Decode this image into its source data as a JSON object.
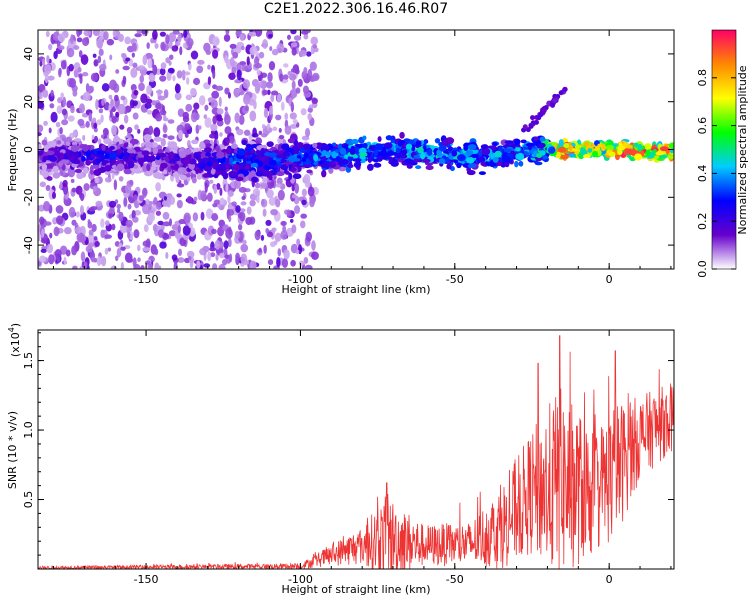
{
  "chart_data": [
    {
      "type": "heatmap",
      "title": "C2E1.2022.306.16.46.R07",
      "xlabel": "Height of straight line (km)",
      "ylabel": "Frequency (Hz)",
      "xlim": [
        -185,
        21
      ],
      "ylim": [
        -50,
        50
      ],
      "xticks": [
        -150,
        -100,
        -50,
        0
      ],
      "yticks": [
        -40,
        -20,
        0,
        20,
        40
      ],
      "grid": false,
      "colorbar": {
        "label": "Normalized spectral amplitude",
        "range": [
          0,
          1
        ],
        "ticks": [
          "0.0",
          "0.2",
          "0.4",
          "0.6",
          "0.8"
        ],
        "colormap": "rainbow",
        "colors": [
          "#ffffff",
          "#6600cc",
          "#0000ff",
          "#00ccff",
          "#00ff00",
          "#ffff00",
          "#ff8800",
          "#ff0066"
        ]
      },
      "band": [
        {
          "x": -180,
          "f": -3,
          "amp": 0.22
        },
        {
          "x": -165,
          "f": -2,
          "amp": 0.32
        },
        {
          "x": -150,
          "f": -3,
          "amp": 0.22
        },
        {
          "x": -135,
          "f": -5,
          "amp": 0.25
        },
        {
          "x": -120,
          "f": -5,
          "amp": 0.4
        },
        {
          "x": -105,
          "f": -4,
          "amp": 0.35
        },
        {
          "x": -90,
          "f": -3,
          "amp": 0.42
        },
        {
          "x": -80,
          "f": -1,
          "amp": 0.5
        },
        {
          "x": -70,
          "f": 0,
          "amp": 0.45
        },
        {
          "x": -60,
          "f": -1,
          "amp": 0.5
        },
        {
          "x": -50,
          "f": -2,
          "amp": 0.48
        },
        {
          "x": -40,
          "f": -3,
          "amp": 0.45
        },
        {
          "x": -30,
          "f": -1,
          "amp": 0.45
        },
        {
          "x": -20,
          "f": 0,
          "amp": 0.55
        },
        {
          "x": -15,
          "f": 0,
          "amp": 0.95
        },
        {
          "x": -5,
          "f": 0,
          "amp": 0.75
        },
        {
          "x": 5,
          "f": 0,
          "amp": 0.95
        },
        {
          "x": 15,
          "f": -1,
          "amp": 0.9
        }
      ]
    },
    {
      "type": "line",
      "ylabel": "SNR (10 * v/v)",
      "yscale_label": "(x10",
      "yscale_exp": "4",
      "xlabel": "Height of straight line (km)",
      "xlim": [
        -185,
        21
      ],
      "ylim": [
        0,
        1.72
      ],
      "xticks": [
        -150,
        -100,
        -50,
        0
      ],
      "yticks": [
        0.5,
        1.0,
        1.5
      ],
      "color": "#ee3333",
      "grid": false,
      "envelope": [
        {
          "x": -185,
          "mean": 0.01,
          "noise": 0.01
        },
        {
          "x": -100,
          "mean": 0.02,
          "noise": 0.02
        },
        {
          "x": -90,
          "mean": 0.1,
          "noise": 0.08
        },
        {
          "x": -80,
          "mean": 0.17,
          "noise": 0.14
        },
        {
          "x": -72,
          "mean": 0.22,
          "noise": 0.32
        },
        {
          "x": -60,
          "mean": 0.17,
          "noise": 0.15
        },
        {
          "x": -45,
          "mean": 0.18,
          "noise": 0.16
        },
        {
          "x": -35,
          "mean": 0.3,
          "noise": 0.3
        },
        {
          "x": -25,
          "mean": 0.55,
          "noise": 0.45
        },
        {
          "x": -16,
          "mean": 0.62,
          "noise": 0.7
        },
        {
          "x": -5,
          "mean": 0.55,
          "noise": 0.45
        },
        {
          "x": 2,
          "mean": 0.7,
          "noise": 0.5
        },
        {
          "x": 10,
          "mean": 0.95,
          "noise": 0.3
        },
        {
          "x": 21,
          "mean": 1.1,
          "noise": 0.25
        }
      ],
      "peaks": [
        {
          "x": -72,
          "y": 0.62
        },
        {
          "x": -16,
          "y": 1.68
        },
        {
          "x": 2,
          "y": 1.57
        },
        {
          "x": -23,
          "y": 1.48
        }
      ]
    }
  ]
}
